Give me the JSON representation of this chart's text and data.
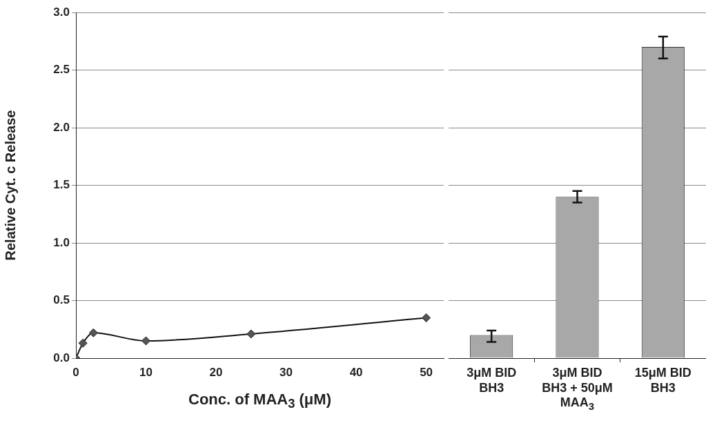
{
  "chart_data": [
    {
      "type": "line",
      "x": [
        0,
        1,
        2.5,
        10,
        25,
        50
      ],
      "values": [
        0,
        0.13,
        0.22,
        0.15,
        0.21,
        0.35
      ],
      "color": "#555555",
      "marker": "diamond",
      "xlim": [
        0,
        52.5
      ],
      "xticks": [
        0,
        10,
        20,
        30,
        40,
        50
      ],
      "ylim": [
        0,
        3
      ],
      "yticks": [
        {
          "value": 0,
          "label": "0.0"
        },
        {
          "value": 0.5,
          "label": "0.5"
        },
        {
          "value": 1,
          "label": "1.0"
        },
        {
          "value": 1.5,
          "label": "1.5"
        },
        {
          "value": 2,
          "label": "2.0"
        },
        {
          "value": 2.5,
          "label": "2.5"
        },
        {
          "value": 3,
          "label": "3.0"
        }
      ],
      "grid": "y",
      "xlabel": "Conc. of MAA$_{3}$ (μM)",
      "ylabel": "Relative Cyt. c Release"
    },
    {
      "type": "bar",
      "categories": [
        "3μM BID BH3",
        "3μM BID BH3 + 50μM MAA$_{3}$",
        "15μM BID BH3"
      ],
      "values": [
        0.2,
        1.4,
        2.7
      ],
      "errors": [
        [
          0.14,
          0.24
        ],
        [
          1.35,
          1.45
        ],
        [
          2.6,
          2.79
        ]
      ],
      "color": "#a8a8a8",
      "ylim": [
        0,
        3
      ],
      "yticks": [
        0,
        0.5,
        1,
        1.5,
        2,
        2.5,
        3
      ],
      "grid": "y",
      "tick_labels": "x"
    }
  ]
}
